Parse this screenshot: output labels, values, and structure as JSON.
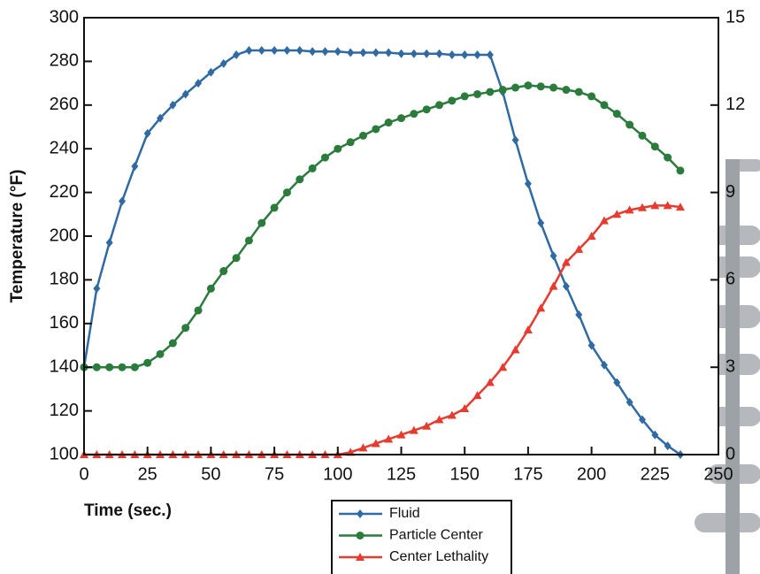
{
  "chart_data": {
    "type": "line",
    "x_label": "Time (sec.)",
    "y_label": "Temperature (°F)",
    "x": [
      0,
      5,
      10,
      15,
      20,
      25,
      30,
      35,
      40,
      45,
      50,
      55,
      60,
      65,
      70,
      75,
      80,
      85,
      90,
      95,
      100,
      105,
      110,
      115,
      120,
      125,
      130,
      135,
      140,
      145,
      150,
      155,
      160,
      165,
      170,
      175,
      180,
      185,
      190,
      195,
      200,
      205,
      210,
      215,
      220,
      225,
      230,
      235
    ],
    "series": [
      {
        "name": "Fluid",
        "color": "#2f6aa3",
        "marker": "diamond",
        "values": [
          140,
          176,
          197,
          216,
          232,
          247,
          254,
          260,
          265,
          270,
          275,
          279,
          283,
          285,
          285,
          285,
          285,
          285,
          284.5,
          284.5,
          284.5,
          284,
          284,
          284,
          284,
          283.5,
          283.5,
          283.5,
          283.5,
          283,
          283,
          283,
          283,
          266,
          244,
          224,
          206,
          191,
          177,
          164,
          150,
          141,
          133,
          124,
          116,
          109,
          104,
          100
        ]
      },
      {
        "name": "Particle Center",
        "color": "#2a7b3c",
        "marker": "circle",
        "values": [
          140,
          140,
          140,
          140,
          140,
          142,
          146,
          151,
          158,
          166,
          176,
          184,
          190,
          198,
          206,
          213,
          220,
          226,
          231,
          236,
          240,
          243,
          246,
          249,
          252,
          254,
          256,
          258,
          260,
          262,
          264,
          265,
          266,
          267,
          268,
          269,
          268.5,
          268,
          267,
          266,
          264,
          260,
          256,
          251,
          246,
          241,
          236,
          230
        ]
      },
      {
        "name": "Center Lethality",
        "color": "#e63b2e",
        "marker": "triangle",
        "axis": "y2",
        "values": [
          0,
          0,
          0,
          0,
          0,
          0,
          0,
          0,
          0,
          0,
          0,
          0,
          0,
          0,
          0,
          0,
          0,
          0,
          0,
          0,
          0,
          0.08,
          0.23,
          0.38,
          0.53,
          0.68,
          0.83,
          0.98,
          1.2,
          1.35,
          1.58,
          2.03,
          2.48,
          3,
          3.6,
          4.28,
          5.03,
          5.78,
          6.6,
          7.05,
          7.5,
          8.03,
          8.25,
          8.4,
          8.48,
          8.55,
          8.55,
          8.5
        ]
      }
    ],
    "xlim": [
      0,
      250
    ],
    "xticks": [
      0,
      25,
      50,
      75,
      100,
      125,
      150,
      175,
      200,
      225,
      250
    ],
    "ylim": [
      100,
      300
    ],
    "yticks": [
      100,
      120,
      140,
      160,
      180,
      200,
      220,
      240,
      260,
      280,
      300
    ],
    "y2lim": [
      0,
      15
    ],
    "y2ticks": [
      0,
      3,
      6,
      9,
      12,
      15
    ]
  }
}
